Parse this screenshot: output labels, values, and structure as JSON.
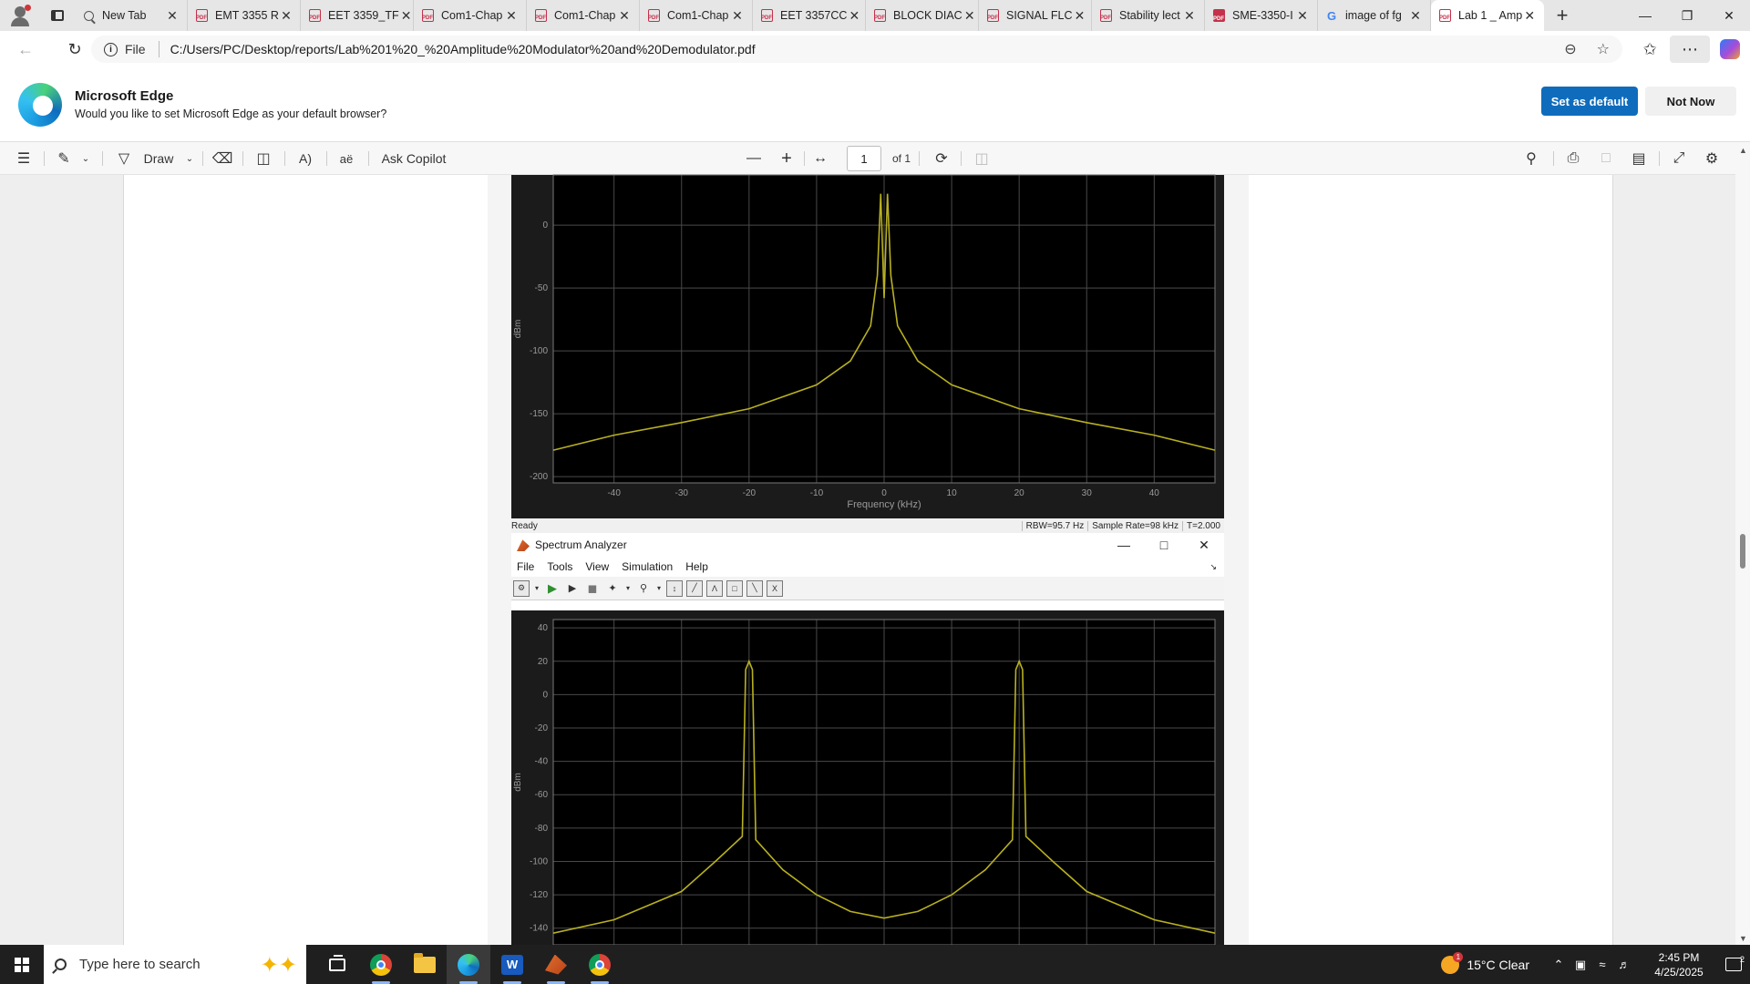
{
  "tabs": [
    {
      "label": "New Tab",
      "icon": "search-icon"
    },
    {
      "label": "EMT 3355 R",
      "icon": "pdf-icon"
    },
    {
      "label": "EET 3359_TF",
      "icon": "pdf-icon"
    },
    {
      "label": "Com1-Chap",
      "icon": "pdf-icon"
    },
    {
      "label": "Com1-Chap",
      "icon": "pdf-icon"
    },
    {
      "label": "Com1-Chap",
      "icon": "pdf-icon"
    },
    {
      "label": "EET 3357CC",
      "icon": "pdf-icon"
    },
    {
      "label": "BLOCK DIAC",
      "icon": "pdf-icon"
    },
    {
      "label": "SIGNAL FLC",
      "icon": "pdf-icon"
    },
    {
      "label": "Stability lect",
      "icon": "pdf-icon"
    },
    {
      "label": "SME-3350-I",
      "icon": "pdf-filled-icon"
    },
    {
      "label": "image of fg",
      "icon": "google-icon"
    },
    {
      "label": "Lab 1 _ Amp",
      "icon": "pdf-icon",
      "active": true
    }
  ],
  "address": {
    "scheme": "File",
    "url": "C:/Users/PC/Desktop/reports/Lab%201%20_%20Amplitude%20Modulator%20and%20Demodulator.pdf"
  },
  "banner": {
    "title": "Microsoft Edge",
    "subtitle": "Would you like to set Microsoft Edge as your default browser?",
    "primary": "Set as default",
    "secondary": "Not Now"
  },
  "pdf_toolbar": {
    "draw": "Draw",
    "ask_copilot": "Ask Copilot",
    "page": "1",
    "page_total": "of 1"
  },
  "spectrum1": {
    "status_left": "Ready",
    "rbw": "RBW=95.7 Hz",
    "sample_rate": "Sample Rate=98 kHz",
    "time": "T=2.000",
    "ylabel": "dBm",
    "xlabel": "Frequency (kHz)"
  },
  "spectrum2": {
    "title": "Spectrum Analyzer",
    "menu": [
      "File",
      "Tools",
      "View",
      "Simulation",
      "Help"
    ],
    "ylabel": "dBm"
  },
  "chart_data": [
    {
      "type": "line",
      "title": "",
      "xlabel": "Frequency (kHz)",
      "ylabel": "dBm",
      "xlim": [
        -49,
        49
      ],
      "ylim": [
        -205,
        40
      ],
      "xticks": [
        -40,
        -30,
        -20,
        -10,
        0,
        10,
        20,
        30,
        40
      ],
      "yticks": [
        0,
        -50,
        -100,
        -150,
        -200
      ],
      "color": "#b8b020",
      "grid": true,
      "x": [
        -49,
        -40,
        -30,
        -20,
        -10,
        -5,
        -2,
        -1,
        -0.5,
        0,
        0.5,
        1,
        2,
        5,
        10,
        20,
        30,
        40,
        49
      ],
      "y": [
        -179,
        -167,
        -157,
        -146,
        -127,
        -108,
        -80,
        -40,
        25,
        -58,
        25,
        -40,
        -80,
        -108,
        -127,
        -146,
        -157,
        -167,
        -179
      ]
    },
    {
      "type": "line",
      "title": "",
      "xlabel": "",
      "ylabel": "dBm",
      "xlim": [
        -49,
        49
      ],
      "ylim": [
        -150,
        45
      ],
      "yticks": [
        40,
        20,
        0,
        -20,
        -40,
        -60,
        -80,
        -100,
        -120,
        -140
      ],
      "color": "#b8b020",
      "grid": true,
      "x": [
        -49,
        -40,
        -30,
        -25,
        -21,
        -20.5,
        -20,
        -19.5,
        -19,
        -15,
        -10,
        -5,
        0,
        5,
        10,
        15,
        19,
        19.5,
        20,
        20.5,
        21,
        25,
        30,
        40,
        49
      ],
      "y": [
        -143,
        -135,
        -118,
        -100,
        -85,
        15,
        20,
        15,
        -87,
        -105,
        -120,
        -130,
        -134,
        -130,
        -120,
        -105,
        -87,
        15,
        20,
        15,
        -85,
        -100,
        -118,
        -135,
        -143
      ]
    }
  ],
  "taskbar": {
    "search_placeholder": "Type here to search",
    "weather": "15°C  Clear",
    "weather_badge": "1",
    "time": "2:45 PM",
    "date": "4/25/2025",
    "notifications": "2"
  }
}
